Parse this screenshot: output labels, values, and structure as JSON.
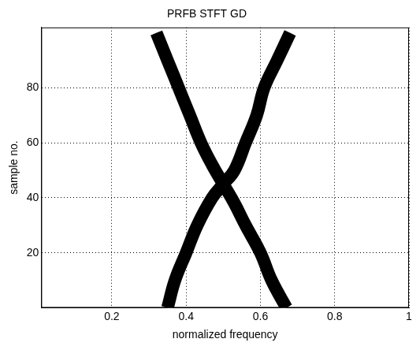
{
  "chart_data": {
    "type": "scatter",
    "title": "PRFB STFT GD",
    "x_label": "normalized frequency",
    "y_label": "sample no.",
    "series": [
      {
        "color": "#808080",
        "line_style": "solid",
        "x": [
          0.32,
          0.35,
          0.38,
          0.41,
          0.44,
          0.47,
          0.5,
          0.53,
          0.56,
          0.6,
          0.63,
          0.67
        ],
        "y": [
          100,
          90,
          80,
          70,
          60,
          52,
          45,
          38,
          30,
          20,
          10,
          0
        ]
      },
      {
        "color": "#808080",
        "line_style": "solid",
        "x": [
          0.35,
          0.37,
          0.4,
          0.43,
          0.47,
          0.5,
          0.53,
          0.56,
          0.59,
          0.61,
          0.645,
          0.68
        ],
        "y": [
          0,
          10,
          20,
          30,
          40,
          45,
          50,
          60,
          70,
          80,
          90,
          100
        ]
      }
    ],
    "xlim": [
      0.01,
      1
    ],
    "xticks": [
      0.2,
      0.4,
      0.6,
      0.8,
      1
    ],
    "ylim": [
      0,
      102
    ],
    "yticks": [
      20,
      40,
      60,
      80
    ],
    "grid": true
  }
}
